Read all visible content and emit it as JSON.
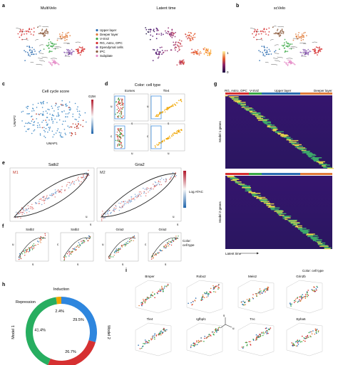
{
  "panels": {
    "a": {
      "letter": "a",
      "left_title": "MultiVelo",
      "mid_title": "Latent time",
      "legend": [
        {
          "label": "Upper layer",
          "color": "#2b6cb0"
        },
        {
          "label": "Deeper layer",
          "color": "#e07b39"
        },
        {
          "label": "V-SVZ",
          "color": "#3aa845"
        },
        {
          "label": "RG, Astro, OPC",
          "color": "#d62f2f"
        },
        {
          "label": "Ependymal cells",
          "color": "#8e5fb5"
        },
        {
          "label": "IPC",
          "color": "#8c5a3c"
        },
        {
          "label": "Subplate",
          "color": "#e58cc8"
        }
      ],
      "colorbar_max": "1",
      "colorbar_min": "0"
    },
    "b": {
      "letter": "b",
      "title": "scVelo"
    },
    "c": {
      "letter": "c",
      "title": "Cell cycle score",
      "ylabel": "UMAP2",
      "xlabel": "UMAP1",
      "cbar_label": "G2M"
    },
    "d": {
      "letter": "d",
      "header": "Color: cell type",
      "gene1": "Eomes",
      "gene2": "Tle4",
      "axis_u": "u",
      "axis_s": "s",
      "axis_c": "c"
    },
    "e": {
      "letter": "e",
      "gene1": "Satb2",
      "gene2": "Gria2",
      "tag1": "M1",
      "tag2": "M2",
      "cbar_label": "Log ATAC",
      "axis_u": "u",
      "axis_s": "s"
    },
    "f": {
      "letter": "f",
      "titles": [
        "Satb2",
        "Satb2",
        "Gria2",
        "Gria2"
      ],
      "legend": "Color: cell type",
      "axis_u": "u",
      "axis_c": "c",
      "axis_s": "s"
    },
    "g": {
      "letter": "g",
      "header_labels": [
        "RG, Astro, OPC",
        "V-SVZ",
        "Upper layer",
        "Deeper layer"
      ],
      "ylabel_top": "Model 1 genes",
      "ylabel_bottom": "Model 2 genes",
      "xlabel": "Latent time"
    },
    "h": {
      "letter": "h",
      "labels": {
        "induction": "Induction",
        "repression": "Repression",
        "model1": "Model 1",
        "model2": "Model 2"
      }
    },
    "i": {
      "letter": "i",
      "legend": "Color: cell type",
      "genes_row1": [
        "Bmper",
        "Robo2",
        "Meis2",
        "Grin2b"
      ],
      "genes_row2": [
        "Tle4",
        "Igfbpl1",
        "Tnc",
        "Epha5"
      ],
      "axis_s": "s",
      "axis_u": "u",
      "axis_c": "c"
    }
  },
  "chart_data": {
    "type": "pie",
    "categories": [
      "Induction",
      "Model 2",
      "Model 1",
      "Repression"
    ],
    "values": [
      29.5,
      26.7,
      41.4,
      2.4
    ],
    "value_labels": [
      "29.5%",
      "26.7%",
      "41.4%",
      "2.4%"
    ],
    "colors": [
      "#2e86de",
      "#d63031",
      "#27ae60",
      "#f0a500"
    ],
    "donut": true
  }
}
